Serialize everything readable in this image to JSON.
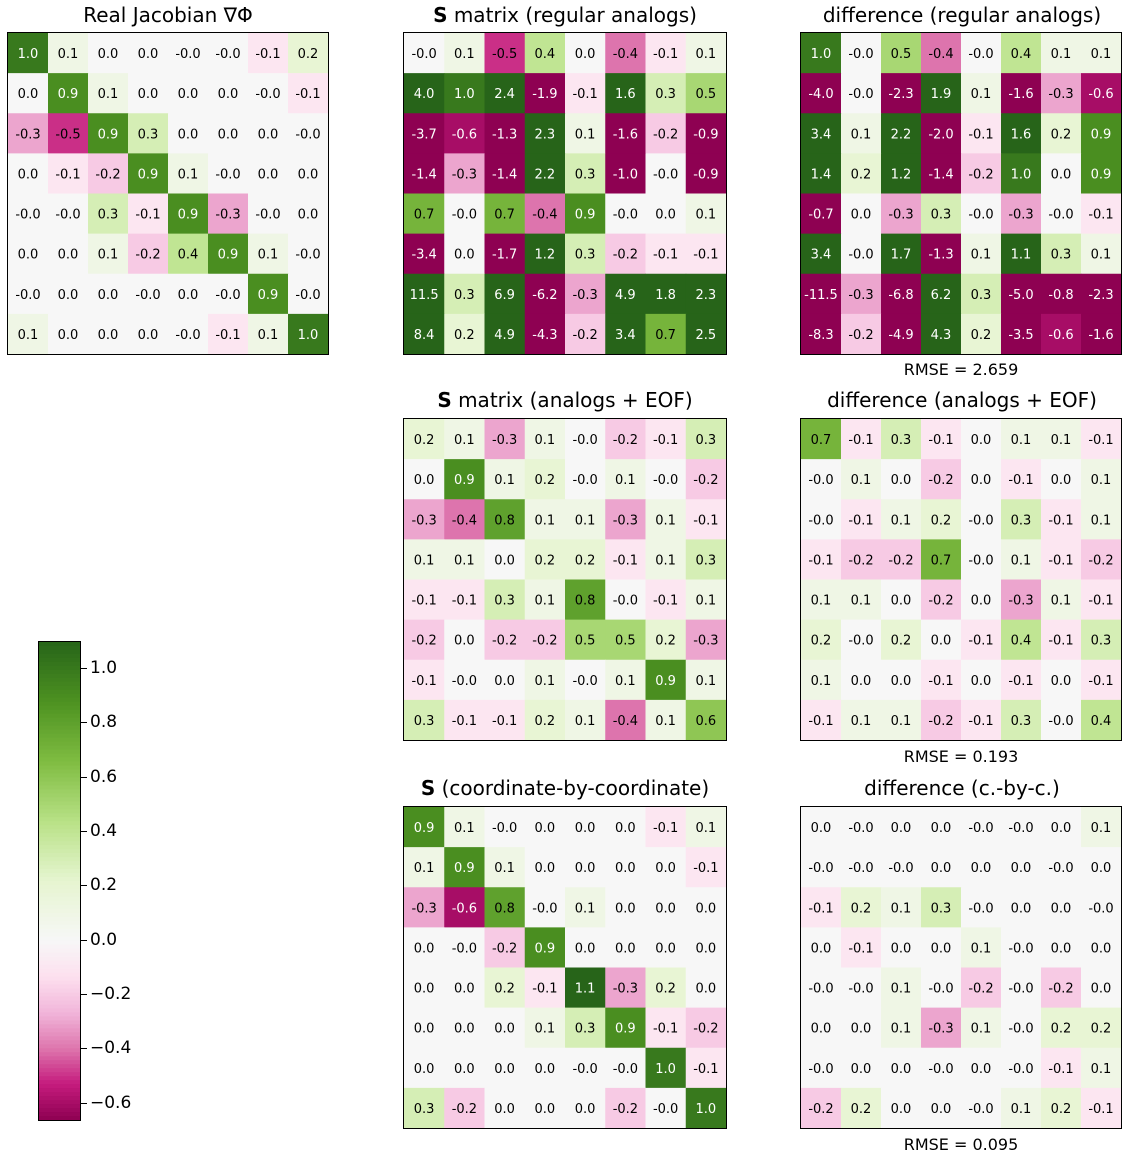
{
  "colors": {
    "min": "#8e0152",
    "mid": "#f7f7f7",
    "max": "#276419"
  },
  "chart_data": [
    {
      "type": "heatmap",
      "title_bold": "",
      "title": "Real Jacobian ∇Φ",
      "rmse": "",
      "values": [
        [
          1.0,
          0.1,
          0.0,
          0.0,
          -0.0,
          -0.0,
          -0.1,
          0.2
        ],
        [
          0.0,
          0.9,
          0.1,
          0.0,
          0.0,
          0.0,
          -0.0,
          -0.1
        ],
        [
          -0.3,
          -0.5,
          0.9,
          0.3,
          0.0,
          0.0,
          0.0,
          -0.0
        ],
        [
          0.0,
          -0.1,
          -0.2,
          0.9,
          0.1,
          -0.0,
          0.0,
          0.0
        ],
        [
          -0.0,
          -0.0,
          0.3,
          -0.1,
          0.9,
          -0.3,
          -0.0,
          0.0
        ],
        [
          0.0,
          0.0,
          0.1,
          -0.2,
          0.4,
          0.9,
          0.1,
          -0.0
        ],
        [
          -0.0,
          0.0,
          0.0,
          -0.0,
          0.0,
          -0.0,
          0.9,
          -0.0
        ],
        [
          0.1,
          0.0,
          0.0,
          0.0,
          -0.0,
          -0.1,
          0.1,
          1.0
        ]
      ]
    },
    {
      "type": "heatmap",
      "title_bold": "S",
      "title": " matrix (regular analogs)",
      "rmse": "",
      "values": [
        [
          -0.0,
          0.1,
          -0.5,
          0.4,
          0.0,
          -0.4,
          -0.1,
          0.1
        ],
        [
          4.0,
          1.0,
          2.4,
          -1.9,
          -0.1,
          1.6,
          0.3,
          0.5
        ],
        [
          -3.7,
          -0.6,
          -1.3,
          2.3,
          0.1,
          -1.6,
          -0.2,
          -0.9
        ],
        [
          -1.4,
          -0.3,
          -1.4,
          2.2,
          0.3,
          -1.0,
          -0.0,
          -0.9
        ],
        [
          0.7,
          -0.0,
          0.7,
          -0.4,
          0.9,
          -0.0,
          0.0,
          0.1
        ],
        [
          -3.4,
          0.0,
          -1.7,
          1.2,
          0.3,
          -0.2,
          -0.1,
          -0.1
        ],
        [
          11.5,
          0.3,
          6.9,
          -6.2,
          -0.3,
          4.9,
          1.8,
          2.3
        ],
        [
          8.4,
          0.2,
          4.9,
          -4.3,
          -0.2,
          3.4,
          0.7,
          2.5
        ]
      ]
    },
    {
      "type": "heatmap",
      "title_bold": "",
      "title": "difference (regular analogs)",
      "rmse": "RMSE = 2.659",
      "values": [
        [
          1.0,
          -0.0,
          0.5,
          -0.4,
          -0.0,
          0.4,
          0.1,
          0.1
        ],
        [
          -4.0,
          -0.0,
          -2.3,
          1.9,
          0.1,
          -1.6,
          -0.3,
          -0.6
        ],
        [
          3.4,
          0.1,
          2.2,
          -2.0,
          -0.1,
          1.6,
          0.2,
          0.9
        ],
        [
          1.4,
          0.2,
          1.2,
          -1.4,
          -0.2,
          1.0,
          0.0,
          0.9
        ],
        [
          -0.7,
          0.0,
          -0.3,
          0.3,
          -0.0,
          -0.3,
          -0.0,
          -0.1
        ],
        [
          3.4,
          -0.0,
          1.7,
          -1.3,
          0.1,
          1.1,
          0.3,
          0.1
        ],
        [
          -11.5,
          -0.3,
          -6.8,
          6.2,
          0.3,
          -5.0,
          -0.8,
          -2.3
        ],
        [
          -8.3,
          -0.2,
          -4.9,
          4.3,
          0.2,
          -3.5,
          -0.6,
          -1.6
        ]
      ]
    },
    {
      "type": "heatmap",
      "title_bold": "S",
      "title": " matrix (analogs + EOF)",
      "rmse": "",
      "values": [
        [
          0.2,
          0.1,
          -0.3,
          0.1,
          -0.0,
          -0.2,
          -0.1,
          0.3
        ],
        [
          0.0,
          0.9,
          0.1,
          0.2,
          -0.0,
          0.1,
          -0.0,
          -0.2
        ],
        [
          -0.3,
          -0.4,
          0.8,
          0.1,
          0.1,
          -0.3,
          0.1,
          -0.1
        ],
        [
          0.1,
          0.1,
          0.0,
          0.2,
          0.2,
          -0.1,
          0.1,
          0.3
        ],
        [
          -0.1,
          -0.1,
          0.3,
          0.1,
          0.8,
          -0.0,
          -0.1,
          0.1
        ],
        [
          -0.2,
          0.0,
          -0.2,
          -0.2,
          0.5,
          0.5,
          0.2,
          -0.3
        ],
        [
          -0.1,
          -0.0,
          0.0,
          0.1,
          -0.0,
          0.1,
          0.9,
          0.1
        ],
        [
          0.3,
          -0.1,
          -0.1,
          0.2,
          0.1,
          -0.4,
          0.1,
          0.6
        ]
      ]
    },
    {
      "type": "heatmap",
      "title_bold": "",
      "title": "difference (analogs + EOF)",
      "rmse": "RMSE = 0.193",
      "values": [
        [
          0.7,
          -0.1,
          0.3,
          -0.1,
          0.0,
          0.1,
          0.1,
          -0.1
        ],
        [
          -0.0,
          0.1,
          0.0,
          -0.2,
          0.0,
          -0.1,
          0.0,
          0.1
        ],
        [
          -0.0,
          -0.1,
          0.1,
          0.2,
          -0.0,
          0.3,
          -0.1,
          0.1
        ],
        [
          -0.1,
          -0.2,
          -0.2,
          0.7,
          -0.0,
          0.1,
          -0.1,
          -0.2
        ],
        [
          0.1,
          0.1,
          0.0,
          -0.2,
          0.0,
          -0.3,
          0.1,
          -0.1
        ],
        [
          0.2,
          -0.0,
          0.2,
          0.0,
          -0.1,
          0.4,
          -0.1,
          0.3
        ],
        [
          0.1,
          0.0,
          0.0,
          -0.1,
          0.0,
          -0.1,
          0.0,
          -0.1
        ],
        [
          -0.1,
          0.1,
          0.1,
          -0.2,
          -0.1,
          0.3,
          -0.0,
          0.4
        ]
      ]
    },
    {
      "type": "heatmap",
      "title_bold": "S",
      "title": " (coordinate-by-coordinate)",
      "rmse": "",
      "values": [
        [
          0.9,
          0.1,
          -0.0,
          0.0,
          0.0,
          0.0,
          -0.1,
          0.1
        ],
        [
          0.1,
          0.9,
          0.1,
          0.0,
          0.0,
          0.0,
          0.0,
          -0.1
        ],
        [
          -0.3,
          -0.6,
          0.8,
          -0.0,
          0.1,
          0.0,
          0.0,
          0.0
        ],
        [
          0.0,
          -0.0,
          -0.2,
          0.9,
          0.0,
          0.0,
          0.0,
          0.0
        ],
        [
          0.0,
          0.0,
          0.2,
          -0.1,
          1.1,
          -0.3,
          0.2,
          0.0
        ],
        [
          0.0,
          0.0,
          0.0,
          0.1,
          0.3,
          0.9,
          -0.1,
          -0.2
        ],
        [
          0.0,
          0.0,
          0.0,
          0.0,
          -0.0,
          -0.0,
          1.0,
          -0.1
        ],
        [
          0.3,
          -0.2,
          0.0,
          0.0,
          0.0,
          -0.2,
          -0.0,
          1.0
        ]
      ]
    },
    {
      "type": "heatmap",
      "title_bold": "",
      "title": "difference (c.-by-c.)",
      "rmse": "RMSE = 0.095",
      "values": [
        [
          0.0,
          -0.0,
          0.0,
          0.0,
          -0.0,
          -0.0,
          0.0,
          0.1
        ],
        [
          -0.0,
          -0.0,
          -0.0,
          0.0,
          0.0,
          0.0,
          -0.0,
          0.0
        ],
        [
          -0.1,
          0.2,
          0.1,
          0.3,
          -0.0,
          0.0,
          0.0,
          -0.0
        ],
        [
          0.0,
          -0.1,
          0.0,
          0.0,
          0.1,
          -0.0,
          0.0,
          0.0
        ],
        [
          -0.0,
          -0.0,
          0.1,
          -0.0,
          -0.2,
          -0.0,
          -0.2,
          0.0
        ],
        [
          0.0,
          0.0,
          0.1,
          -0.3,
          0.1,
          -0.0,
          0.2,
          0.2
        ],
        [
          -0.0,
          0.0,
          0.0,
          -0.0,
          0.0,
          -0.0,
          -0.1,
          0.1
        ],
        [
          -0.2,
          0.2,
          0.0,
          0.0,
          -0.0,
          0.1,
          0.2,
          -0.1
        ]
      ]
    }
  ],
  "colorbar": {
    "min": -0.66,
    "max": 1.1,
    "ticks": [
      1.0,
      0.8,
      0.6,
      0.4,
      0.2,
      0.0,
      -0.2,
      -0.4,
      -0.6
    ],
    "tick_labels": [
      "1.0",
      "0.8",
      "0.6",
      "0.4",
      "0.2",
      "0.0",
      "−0.2",
      "−0.4",
      "−0.6"
    ]
  }
}
